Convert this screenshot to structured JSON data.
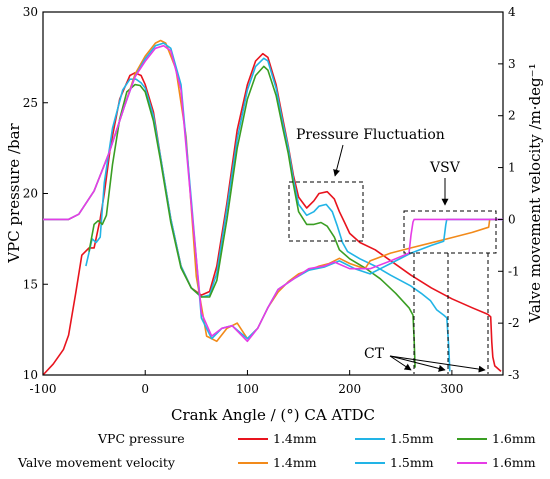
{
  "chart_data": {
    "type": "line",
    "xlabel": "Crank Angle / (°) CA ATDC",
    "ylabel_left": "VPC pressure  /bar",
    "ylabel_right": "Valve movement velocity /m·deg⁻¹",
    "xlim": [
      -100,
      350
    ],
    "ylim_left": [
      10,
      30
    ],
    "ylim_right": [
      -3,
      4
    ],
    "x_ticks": [
      "-100",
      "0",
      "100",
      "200",
      "300"
    ],
    "y_left_ticks": [
      "10",
      "15",
      "20",
      "25",
      "30"
    ],
    "y_right_ticks": [
      "-3",
      "-2",
      "-1",
      "0",
      "1",
      "2",
      "3",
      "4"
    ],
    "grid": false,
    "legend_position": "bottom",
    "legend": {
      "groups": [
        {
          "label": "VPC pressure",
          "items": [
            "1.4mm",
            "1.5mm",
            "1.6mm"
          ],
          "colors": [
            "#e8141e",
            "#22b4e6",
            "#3a9e23"
          ]
        },
        {
          "label": "Valve movement velocity",
          "items": [
            "1.4mm",
            "1.5mm",
            "1.6mm"
          ],
          "colors": [
            "#f28a1a",
            "#22b4e6",
            "#e63ce6"
          ]
        }
      ]
    },
    "annotations": {
      "pressure_fluctuation": "Pressure Fluctuation",
      "vsv": "VSV",
      "ct": "CT"
    },
    "series": [
      {
        "group": "VPC pressure",
        "name": "1.4mm",
        "axis": "left",
        "color": "#e8141e",
        "points": [
          [
            -100,
            10
          ],
          [
            -90,
            10.6
          ],
          [
            -80,
            11.4
          ],
          [
            -75,
            12.2
          ],
          [
            -68,
            14.5
          ],
          [
            -62,
            16.6
          ],
          [
            -55,
            17
          ],
          [
            -50,
            17
          ],
          [
            -44,
            18.6
          ],
          [
            -40,
            20
          ],
          [
            -34,
            22.6
          ],
          [
            -25,
            25.2
          ],
          [
            -15,
            26.5
          ],
          [
            -10,
            26.65
          ],
          [
            -4,
            26.5
          ],
          [
            0,
            26
          ],
          [
            8,
            24.5
          ],
          [
            15,
            22
          ],
          [
            25,
            18.6
          ],
          [
            35,
            16
          ],
          [
            45,
            14.8
          ],
          [
            55,
            14.4
          ],
          [
            63,
            14.6
          ],
          [
            70,
            16
          ],
          [
            80,
            19.5
          ],
          [
            90,
            23.5
          ],
          [
            100,
            26
          ],
          [
            108,
            27.3
          ],
          [
            115,
            27.7
          ],
          [
            120,
            27.5
          ],
          [
            128,
            26
          ],
          [
            135,
            24
          ],
          [
            140,
            22.6
          ],
          [
            145,
            21
          ],
          [
            150,
            19.8
          ],
          [
            158,
            19.2
          ],
          [
            165,
            19.6
          ],
          [
            170,
            20
          ],
          [
            178,
            20.1
          ],
          [
            185,
            19.7
          ],
          [
            190,
            19
          ],
          [
            195,
            18.4
          ],
          [
            200,
            17.8
          ],
          [
            210,
            17.3
          ],
          [
            225,
            16.9
          ],
          [
            240,
            16.3
          ],
          [
            260,
            15.5
          ],
          [
            280,
            14.8
          ],
          [
            300,
            14.2
          ],
          [
            320,
            13.7
          ],
          [
            335,
            13.35
          ],
          [
            338,
            13.2
          ],
          [
            339,
            11.8
          ],
          [
            340,
            11
          ],
          [
            342,
            10.5
          ],
          [
            348,
            10.2
          ]
        ]
      },
      {
        "group": "VPC pressure",
        "name": "1.5mm",
        "axis": "left",
        "color": "#22b4e6",
        "points": [
          [
            -58,
            16
          ],
          [
            -52,
            17.5
          ],
          [
            -48,
            17.3
          ],
          [
            -44,
            17.6
          ],
          [
            -40,
            20.6
          ],
          [
            -32,
            23.6
          ],
          [
            -22,
            25.7
          ],
          [
            -15,
            26.3
          ],
          [
            -9,
            26.3
          ],
          [
            -4,
            26.1
          ],
          [
            0,
            25.8
          ],
          [
            8,
            24.3
          ],
          [
            15,
            22
          ],
          [
            25,
            18.6
          ],
          [
            35,
            16
          ],
          [
            45,
            14.8
          ],
          [
            55,
            14.3
          ],
          [
            63,
            14.4
          ],
          [
            70,
            15.6
          ],
          [
            80,
            19.2
          ],
          [
            90,
            23
          ],
          [
            100,
            25.7
          ],
          [
            108,
            27
          ],
          [
            116,
            27.45
          ],
          [
            120,
            27.3
          ],
          [
            128,
            25.8
          ],
          [
            135,
            23.8
          ],
          [
            140,
            22.5
          ],
          [
            145,
            20.8
          ],
          [
            150,
            19.4
          ],
          [
            158,
            18.8
          ],
          [
            165,
            19
          ],
          [
            170,
            19.3
          ],
          [
            177,
            19.4
          ],
          [
            183,
            19
          ],
          [
            188,
            18.2
          ],
          [
            193,
            17.3
          ],
          [
            198,
            16.8
          ],
          [
            210,
            16.4
          ],
          [
            225,
            16
          ],
          [
            240,
            15.5
          ],
          [
            260,
            14.9
          ],
          [
            270,
            14.5
          ],
          [
            279,
            14.1
          ],
          [
            285,
            13.6
          ],
          [
            292,
            13.3
          ],
          [
            295,
            13.15
          ],
          [
            297,
            11.5
          ],
          [
            298,
            10.2
          ]
        ]
      },
      {
        "group": "VPC pressure",
        "name": "1.6mm",
        "axis": "left",
        "color": "#3a9e23",
        "points": [
          [
            -55,
            16.8
          ],
          [
            -50,
            18.3
          ],
          [
            -46,
            18.5
          ],
          [
            -42,
            18.3
          ],
          [
            -38,
            18.8
          ],
          [
            -32,
            21.6
          ],
          [
            -25,
            24.1
          ],
          [
            -18,
            25.6
          ],
          [
            -10,
            26
          ],
          [
            -5,
            25.95
          ],
          [
            0,
            25.6
          ],
          [
            8,
            24
          ],
          [
            15,
            21.8
          ],
          [
            25,
            18.4
          ],
          [
            35,
            15.9
          ],
          [
            45,
            14.8
          ],
          [
            55,
            14.3
          ],
          [
            63,
            14.3
          ],
          [
            70,
            15.2
          ],
          [
            80,
            18.6
          ],
          [
            90,
            22.5
          ],
          [
            100,
            25.2
          ],
          [
            108,
            26.5
          ],
          [
            116,
            27
          ],
          [
            120,
            26.8
          ],
          [
            128,
            25.4
          ],
          [
            135,
            23.5
          ],
          [
            140,
            22.2
          ],
          [
            145,
            20.5
          ],
          [
            150,
            19
          ],
          [
            158,
            18.3
          ],
          [
            165,
            18.3
          ],
          [
            172,
            18.4
          ],
          [
            178,
            18.2
          ],
          [
            185,
            17.6
          ],
          [
            190,
            16.9
          ],
          [
            200,
            16.4
          ],
          [
            215,
            15.9
          ],
          [
            230,
            15.3
          ],
          [
            245,
            14.5
          ],
          [
            258,
            13.7
          ],
          [
            262,
            13.3
          ],
          [
            263,
            12
          ],
          [
            264,
            10.4
          ]
        ]
      },
      {
        "group": "Valve movement velocity",
        "name": "1.4mm",
        "axis": "right",
        "color": "#f28a1a",
        "points": [
          [
            -100,
            0
          ],
          [
            -75,
            0
          ],
          [
            -65,
            0.1
          ],
          [
            -50,
            0.55
          ],
          [
            -35,
            1.3
          ],
          [
            -20,
            2.2
          ],
          [
            -10,
            2.8
          ],
          [
            0,
            3.15
          ],
          [
            10,
            3.4
          ],
          [
            15,
            3.45
          ],
          [
            20,
            3.4
          ],
          [
            30,
            2.9
          ],
          [
            40,
            1.6
          ],
          [
            50,
            -1.1
          ],
          [
            60,
            -2.25
          ],
          [
            70,
            -2.35
          ],
          [
            80,
            -2.1
          ],
          [
            90,
            -2
          ],
          [
            100,
            -2.3
          ],
          [
            110,
            -2.1
          ],
          [
            120,
            -1.7
          ],
          [
            130,
            -1.4
          ],
          [
            140,
            -1.2
          ],
          [
            150,
            -1.05
          ],
          [
            160,
            -0.98
          ],
          [
            170,
            -0.9
          ],
          [
            180,
            -0.85
          ],
          [
            190,
            -0.75
          ],
          [
            200,
            -0.85
          ],
          [
            215,
            -0.95
          ],
          [
            220,
            -0.8
          ],
          [
            240,
            -0.65
          ],
          [
            260,
            -0.55
          ],
          [
            280,
            -0.45
          ],
          [
            300,
            -0.35
          ],
          [
            320,
            -0.25
          ],
          [
            336,
            -0.15
          ],
          [
            337,
            0
          ],
          [
            345,
            0
          ]
        ]
      },
      {
        "group": "Valve movement velocity",
        "name": "1.5mm",
        "axis": "right",
        "color": "#22b4e6",
        "points": [
          [
            -100,
            0
          ],
          [
            -75,
            0
          ],
          [
            -65,
            0.1
          ],
          [
            -50,
            0.55
          ],
          [
            -35,
            1.3
          ],
          [
            -20,
            2.2
          ],
          [
            -10,
            2.75
          ],
          [
            0,
            3.1
          ],
          [
            10,
            3.35
          ],
          [
            18,
            3.4
          ],
          [
            25,
            3.3
          ],
          [
            35,
            2.6
          ],
          [
            45,
            0.4
          ],
          [
            55,
            -1.9
          ],
          [
            65,
            -2.3
          ],
          [
            75,
            -2.1
          ],
          [
            85,
            -2.05
          ],
          [
            100,
            -2.3
          ],
          [
            110,
            -2.1
          ],
          [
            120,
            -1.7
          ],
          [
            130,
            -1.35
          ],
          [
            145,
            -1.15
          ],
          [
            160,
            -0.98
          ],
          [
            175,
            -0.92
          ],
          [
            190,
            -0.8
          ],
          [
            205,
            -0.95
          ],
          [
            220,
            -1.05
          ],
          [
            240,
            -0.85
          ],
          [
            260,
            -0.65
          ],
          [
            280,
            -0.5
          ],
          [
            292,
            -0.42
          ],
          [
            294,
            -0.1
          ],
          [
            295,
            0
          ],
          [
            350,
            0
          ]
        ]
      },
      {
        "group": "Valve movement velocity",
        "name": "1.6mm",
        "axis": "right",
        "color": "#e63ce6",
        "points": [
          [
            -100,
            0
          ],
          [
            -75,
            0
          ],
          [
            -65,
            0.1
          ],
          [
            -50,
            0.55
          ],
          [
            -35,
            1.3
          ],
          [
            -20,
            2.2
          ],
          [
            -10,
            2.75
          ],
          [
            0,
            3.05
          ],
          [
            10,
            3.3
          ],
          [
            18,
            3.35
          ],
          [
            25,
            3.25
          ],
          [
            35,
            2.5
          ],
          [
            45,
            0.3
          ],
          [
            55,
            -1.8
          ],
          [
            65,
            -2.25
          ],
          [
            75,
            -2.1
          ],
          [
            85,
            -2.05
          ],
          [
            100,
            -2.35
          ],
          [
            110,
            -2.1
          ],
          [
            120,
            -1.7
          ],
          [
            130,
            -1.35
          ],
          [
            145,
            -1.15
          ],
          [
            160,
            -0.95
          ],
          [
            175,
            -0.9
          ],
          [
            185,
            -0.82
          ],
          [
            200,
            -0.95
          ],
          [
            220,
            -0.95
          ],
          [
            240,
            -0.8
          ],
          [
            258,
            -0.65
          ],
          [
            260,
            -0.3
          ],
          [
            262,
            -0.05
          ],
          [
            263,
            0
          ],
          [
            350,
            0
          ]
        ]
      }
    ]
  }
}
